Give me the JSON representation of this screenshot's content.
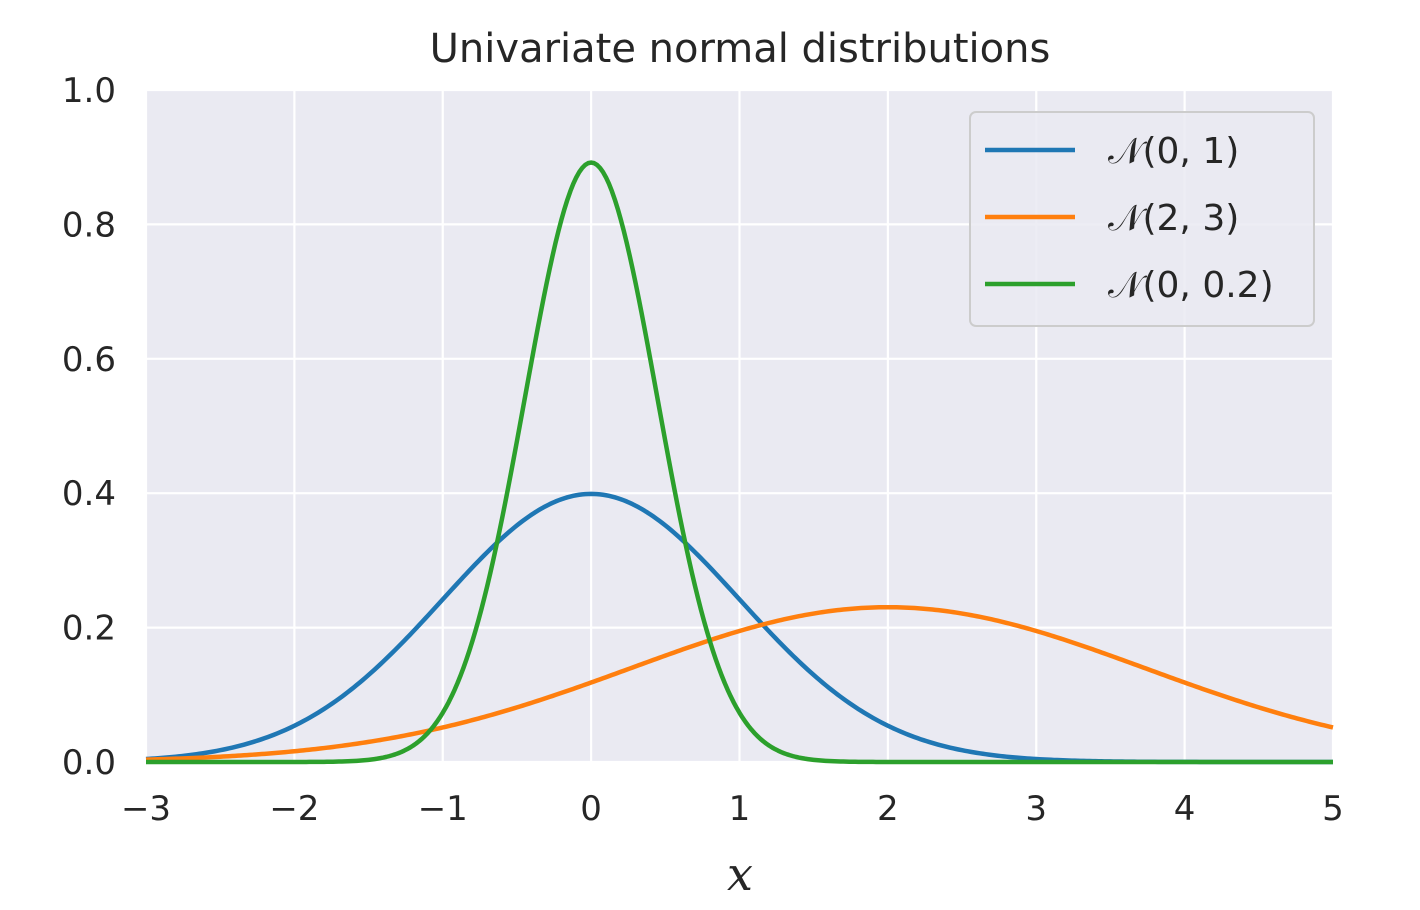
{
  "chart_data": {
    "type": "line",
    "title": "Univariate normal distributions",
    "xlabel": "x",
    "ylabel": "",
    "xlim": [
      -3,
      5
    ],
    "ylim": [
      0,
      1.0
    ],
    "x_ticks": [
      -3,
      -2,
      -1,
      0,
      1,
      2,
      3,
      4,
      5
    ],
    "x_tick_labels": [
      "−3",
      "−2",
      "−1",
      "0",
      "1",
      "2",
      "3",
      "4",
      "5"
    ],
    "y_ticks": [
      0.0,
      0.2,
      0.4,
      0.6,
      0.8,
      1.0
    ],
    "y_tick_labels": [
      "0.0",
      "0.2",
      "0.4",
      "0.6",
      "0.8",
      "1.0"
    ],
    "grid": true,
    "legend_position": "top-right",
    "background_color": "#eaeaf2",
    "grid_color": "#ffffff",
    "series": [
      {
        "name": "𝒩(0, 1)",
        "color": "#1f77b4",
        "mean": 0,
        "variance": 1
      },
      {
        "name": "𝒩(2, 3)",
        "color": "#ff7f0e",
        "mean": 2,
        "variance": 3
      },
      {
        "name": "𝒩(0, 0.2)",
        "color": "#2ca02c",
        "mean": 0,
        "variance": 0.2
      }
    ]
  }
}
